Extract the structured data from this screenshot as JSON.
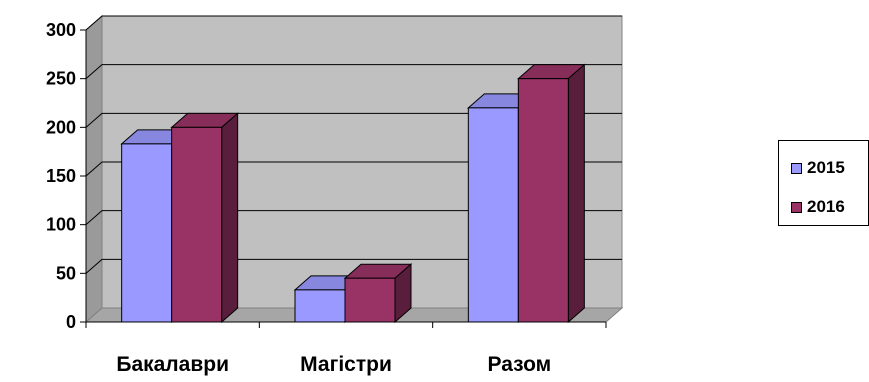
{
  "chart_data": {
    "type": "bar",
    "categories": [
      "Бакалаври",
      "Магістри",
      "Разом"
    ],
    "series": [
      {
        "name": "2015",
        "values": [
          183,
          33,
          220
        ],
        "color": "#9999ff"
      },
      {
        "name": "2016",
        "values": [
          200,
          45,
          250
        ],
        "color": "#993366"
      }
    ],
    "y_ticks": [
      "0",
      "50",
      "100",
      "150",
      "200",
      "250",
      "300"
    ],
    "ylim": [
      0,
      300
    ],
    "grid": true,
    "legend_position": "right",
    "style": "3d-clustered-column",
    "plot_background": "#c0c0c0"
  }
}
